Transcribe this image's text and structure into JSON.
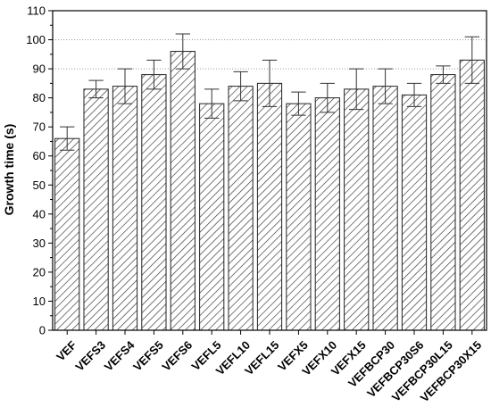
{
  "chart_data": {
    "type": "bar",
    "title": "",
    "xlabel": "",
    "ylabel": "Growth time (s)",
    "ylim": [
      0,
      110
    ],
    "yticks": [
      0,
      10,
      20,
      30,
      40,
      50,
      60,
      70,
      80,
      90,
      100,
      110
    ],
    "grid": "horizontal dotted at 90 and 100",
    "bar_fill": "diagonal hatch",
    "bar_color": "#333333",
    "categories": [
      "VEF",
      "VEFS3",
      "VEFS4",
      "VEFS5",
      "VEFS6",
      "VEFL5",
      "VEFL10",
      "VEFL15",
      "VEFX5",
      "VEFX10",
      "VEFX15",
      "VEFBCP30",
      "VEFBCP30S6",
      "VEFBCP30L15",
      "VEFBCP30X15"
    ],
    "values": [
      66,
      83,
      84,
      88,
      96,
      78,
      84,
      85,
      78,
      80,
      83,
      84,
      81,
      88,
      93
    ],
    "errors": [
      4,
      3,
      6,
      5,
      6,
      5,
      5,
      8,
      4,
      5,
      7,
      6,
      4,
      3,
      8
    ]
  }
}
